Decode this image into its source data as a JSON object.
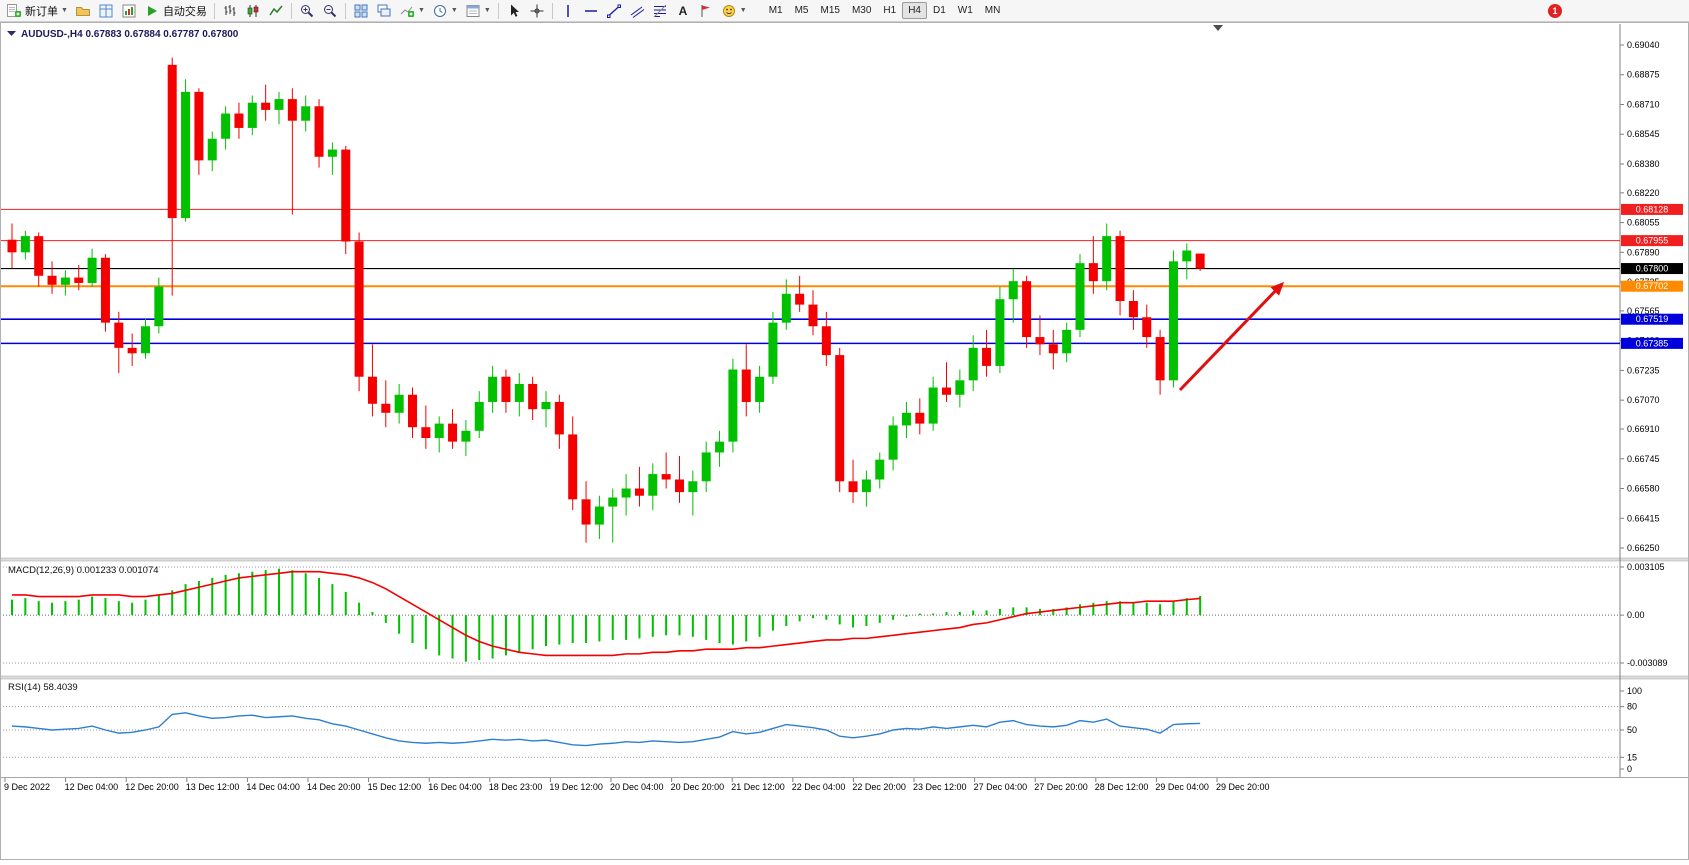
{
  "toolbar": {
    "new_order_label": "新订单",
    "autotrading_label": "自动交易",
    "timeframes": [
      "M1",
      "M5",
      "M15",
      "M30",
      "H1",
      "H4",
      "D1",
      "W1",
      "MN"
    ],
    "active_timeframe": "H4",
    "notification_count": "1",
    "icons": [
      "new-order-icon",
      "profiles-icon",
      "market-watch-icon",
      "terminal-icon",
      "autotrading-icon",
      "bar-chart-icon",
      "candlestick-chart-icon",
      "line-chart-icon",
      "zoom-in-icon",
      "zoom-out-icon",
      "tile-windows-icon",
      "cascade-windows-icon",
      "indicators-icon",
      "periods-icon",
      "templates-icon",
      "cursor-icon",
      "crosshair-icon",
      "vertical-line-icon",
      "horizontal-line-icon",
      "trendline-icon",
      "channel-icon",
      "fibonacci-icon",
      "text-icon",
      "label-icon",
      "arrows-icon"
    ]
  },
  "chart": {
    "title_symbol": "AUDUSD-,H4",
    "title_quotes": "0.67883 0.67884 0.67787 0.67800",
    "arrow_color": "#e01010",
    "price_axis_labels": [
      "0.69040",
      "0.68875",
      "0.68710",
      "0.68545",
      "0.68380",
      "0.68220",
      "0.68055",
      "0.67890",
      "0.67725",
      "0.67565",
      "0.67400",
      "0.67235",
      "0.67070",
      "0.66910",
      "0.66745",
      "0.66580",
      "0.66415",
      "0.66250"
    ],
    "h_lines": [
      {
        "price": 0.68128,
        "label": "0.68128",
        "color": "#f02020",
        "width": 1
      },
      {
        "price": 0.67955,
        "label": "0.67955",
        "color": "#f02020",
        "width": 1
      },
      {
        "price": 0.678,
        "label": "0.67800",
        "color": "#000000",
        "width": 1.2
      },
      {
        "price": 0.67702,
        "label": "0.67702",
        "color": "#ff8a00",
        "width": 2
      },
      {
        "price": 0.67519,
        "label": "0.67519",
        "color": "#0000dd",
        "width": 1.6
      },
      {
        "price": 0.67385,
        "label": "0.67385",
        "color": "#0000dd",
        "width": 1.6
      }
    ],
    "time_axis_labels": [
      "9 Dec 2022",
      "12 Dec 04:00",
      "12 Dec 20:00",
      "13 Dec 12:00",
      "14 Dec 04:00",
      "14 Dec 20:00",
      "15 Dec 12:00",
      "16 Dec 04:00",
      "18 Dec 23:00",
      "19 Dec 12:00",
      "20 Dec 04:00",
      "20 Dec 20:00",
      "21 Dec 12:00",
      "22 Dec 04:00",
      "22 Dec 20:00",
      "23 Dec 12:00",
      "27 Dec 04:00",
      "27 Dec 20:00",
      "28 Dec 12:00",
      "29 Dec 04:00",
      "29 Dec 20:00"
    ]
  },
  "macd": {
    "title": "MACD(12,26,9) 0.001233 0.001074",
    "axis_labels": [
      "0.003105",
      "0.00",
      "-0.003089"
    ]
  },
  "rsi": {
    "title": "RSI(14) 58.4039",
    "axis_labels": [
      "100",
      "80",
      "50",
      "15",
      "0"
    ],
    "levels": [
      80,
      50,
      15
    ]
  },
  "chart_data": [
    {
      "type": "candlestick",
      "title": "AUDUSD-,H4",
      "x_axis": "time, H4 bars, 9 Dec 2022 - 29 Dec 2022",
      "ylim": [
        0.6625,
        0.6904
      ],
      "up_color": "#00c000",
      "down_color": "#f40000",
      "ohlc": [
        [
          0.6796,
          0.6805,
          0.678,
          0.6789
        ],
        [
          0.6789,
          0.6801,
          0.6785,
          0.6798
        ],
        [
          0.6798,
          0.68,
          0.677,
          0.6776
        ],
        [
          0.6776,
          0.6784,
          0.6766,
          0.6771
        ],
        [
          0.6771,
          0.6779,
          0.6765,
          0.6775
        ],
        [
          0.6775,
          0.6782,
          0.6768,
          0.6772
        ],
        [
          0.6772,
          0.6791,
          0.677,
          0.6786
        ],
        [
          0.6786,
          0.6788,
          0.6745,
          0.675
        ],
        [
          0.675,
          0.6756,
          0.6722,
          0.6736
        ],
        [
          0.6736,
          0.6744,
          0.6726,
          0.6733
        ],
        [
          0.6733,
          0.6752,
          0.673,
          0.6748
        ],
        [
          0.6748,
          0.6775,
          0.6744,
          0.677
        ],
        [
          0.6893,
          0.6897,
          0.6765,
          0.6808
        ],
        [
          0.6808,
          0.6885,
          0.6806,
          0.6878
        ],
        [
          0.6878,
          0.688,
          0.6832,
          0.684
        ],
        [
          0.684,
          0.6856,
          0.6834,
          0.6852
        ],
        [
          0.6852,
          0.687,
          0.6846,
          0.6866
        ],
        [
          0.6866,
          0.6872,
          0.6852,
          0.6858
        ],
        [
          0.6858,
          0.6876,
          0.6854,
          0.6872
        ],
        [
          0.6872,
          0.6882,
          0.6862,
          0.6868
        ],
        [
          0.6868,
          0.6878,
          0.686,
          0.6874
        ],
        [
          0.6874,
          0.688,
          0.681,
          0.6862
        ],
        [
          0.6862,
          0.6876,
          0.6856,
          0.687
        ],
        [
          0.687,
          0.6874,
          0.6836,
          0.6842
        ],
        [
          0.6842,
          0.685,
          0.6832,
          0.6846
        ],
        [
          0.6846,
          0.6848,
          0.6788,
          0.6795
        ],
        [
          0.6795,
          0.68,
          0.6712,
          0.672
        ],
        [
          0.672,
          0.6738,
          0.6698,
          0.6705
        ],
        [
          0.6705,
          0.6718,
          0.6692,
          0.67
        ],
        [
          0.67,
          0.6716,
          0.6694,
          0.671
        ],
        [
          0.671,
          0.6714,
          0.6686,
          0.6692
        ],
        [
          0.6692,
          0.6704,
          0.668,
          0.6686
        ],
        [
          0.6686,
          0.6698,
          0.6678,
          0.6694
        ],
        [
          0.6694,
          0.6702,
          0.668,
          0.6684
        ],
        [
          0.6684,
          0.6696,
          0.6676,
          0.669
        ],
        [
          0.669,
          0.6712,
          0.6686,
          0.6706
        ],
        [
          0.6706,
          0.6726,
          0.67,
          0.672
        ],
        [
          0.672,
          0.6724,
          0.67,
          0.6706
        ],
        [
          0.6706,
          0.6722,
          0.6698,
          0.6716
        ],
        [
          0.6716,
          0.672,
          0.6696,
          0.6702
        ],
        [
          0.6702,
          0.6712,
          0.6692,
          0.6706
        ],
        [
          0.6706,
          0.671,
          0.668,
          0.6688
        ],
        [
          0.6688,
          0.6698,
          0.6646,
          0.6652
        ],
        [
          0.6652,
          0.6662,
          0.6628,
          0.6638
        ],
        [
          0.6638,
          0.6654,
          0.663,
          0.6648
        ],
        [
          0.6648,
          0.6658,
          0.6628,
          0.6653
        ],
        [
          0.6653,
          0.6666,
          0.6643,
          0.6658
        ],
        [
          0.6658,
          0.667,
          0.6648,
          0.6654
        ],
        [
          0.6654,
          0.6672,
          0.6646,
          0.6666
        ],
        [
          0.6666,
          0.6678,
          0.6658,
          0.6663
        ],
        [
          0.6663,
          0.6676,
          0.665,
          0.6656
        ],
        [
          0.6656,
          0.6668,
          0.6643,
          0.6662
        ],
        [
          0.6662,
          0.6684,
          0.6656,
          0.6678
        ],
        [
          0.6678,
          0.669,
          0.667,
          0.6684
        ],
        [
          0.6684,
          0.673,
          0.6678,
          0.6724
        ],
        [
          0.6724,
          0.6738,
          0.6698,
          0.6706
        ],
        [
          0.6706,
          0.6726,
          0.67,
          0.672
        ],
        [
          0.672,
          0.6756,
          0.6716,
          0.675
        ],
        [
          0.675,
          0.6774,
          0.6746,
          0.6766
        ],
        [
          0.6766,
          0.6776,
          0.6756,
          0.676
        ],
        [
          0.676,
          0.6768,
          0.6743,
          0.6748
        ],
        [
          0.6748,
          0.6756,
          0.6726,
          0.6732
        ],
        [
          0.6732,
          0.6736,
          0.6656,
          0.6662
        ],
        [
          0.6662,
          0.6674,
          0.665,
          0.6656
        ],
        [
          0.6656,
          0.6668,
          0.6648,
          0.6663
        ],
        [
          0.6663,
          0.6678,
          0.6658,
          0.6674
        ],
        [
          0.6674,
          0.6698,
          0.6668,
          0.6693
        ],
        [
          0.6693,
          0.6706,
          0.6686,
          0.67
        ],
        [
          0.67,
          0.6708,
          0.6688,
          0.6694
        ],
        [
          0.6694,
          0.672,
          0.669,
          0.6714
        ],
        [
          0.6714,
          0.6728,
          0.6706,
          0.671
        ],
        [
          0.671,
          0.6724,
          0.6703,
          0.6718
        ],
        [
          0.6718,
          0.6743,
          0.6712,
          0.6736
        ],
        [
          0.6736,
          0.6746,
          0.672,
          0.6726
        ],
        [
          0.6726,
          0.677,
          0.6722,
          0.6763
        ],
        [
          0.6763,
          0.678,
          0.675,
          0.6773
        ],
        [
          0.6773,
          0.6776,
          0.6736,
          0.6742
        ],
        [
          0.6742,
          0.6754,
          0.6732,
          0.6738
        ],
        [
          0.6738,
          0.6746,
          0.6724,
          0.6733
        ],
        [
          0.6733,
          0.675,
          0.6728,
          0.6746
        ],
        [
          0.6746,
          0.6788,
          0.6742,
          0.6783
        ],
        [
          0.6783,
          0.6798,
          0.6766,
          0.6773
        ],
        [
          0.6773,
          0.6805,
          0.6768,
          0.6798
        ],
        [
          0.6798,
          0.6801,
          0.6754,
          0.6762
        ],
        [
          0.6762,
          0.6768,
          0.6746,
          0.6753
        ],
        [
          0.6753,
          0.676,
          0.6736,
          0.6742
        ],
        [
          0.6742,
          0.6746,
          0.671,
          0.6718
        ],
        [
          0.6718,
          0.679,
          0.6714,
          0.6784
        ],
        [
          0.6784,
          0.6794,
          0.6774,
          0.679
        ],
        [
          0.67883,
          0.67884,
          0.67787,
          0.678
        ]
      ]
    },
    {
      "type": "macd",
      "title": "MACD(12,26,9)",
      "current_values": [
        0.001233,
        0.001074
      ],
      "ylim": [
        -0.003089,
        0.003105
      ],
      "series": [
        {
          "name": "histogram",
          "type": "bar",
          "color": "#00c000",
          "values": [
            0.001,
            0.0011,
            0.0009,
            0.0008,
            0.0009,
            0.001,
            0.0012,
            0.0011,
            0.0009,
            0.0008,
            0.001,
            0.0013,
            0.0016,
            0.002,
            0.0022,
            0.0024,
            0.0026,
            0.0027,
            0.0028,
            0.0029,
            0.003,
            0.0029,
            0.0027,
            0.0024,
            0.002,
            0.0015,
            0.0008,
            0.0002,
            -0.0005,
            -0.0012,
            -0.0018,
            -0.0022,
            -0.0026,
            -0.0028,
            -0.003,
            -0.0029,
            -0.0028,
            -0.0026,
            -0.0024,
            -0.0022,
            -0.002,
            -0.0019,
            -0.0018,
            -0.0018,
            -0.0017,
            -0.0016,
            -0.0016,
            -0.0015,
            -0.0014,
            -0.0013,
            -0.0013,
            -0.0014,
            -0.0016,
            -0.0018,
            -0.0019,
            -0.0017,
            -0.0014,
            -0.001,
            -0.0007,
            -0.0004,
            -0.0002,
            -0.0003,
            -0.0006,
            -0.0008,
            -0.0007,
            -0.0005,
            -0.0003,
            -0.0001,
            0.0001,
            0.0001,
            0.0002,
            0.0002,
            0.0003,
            0.0003,
            0.0004,
            0.0005,
            0.0005,
            0.0004,
            0.0004,
            0.0005,
            0.0007,
            0.0008,
            0.0009,
            0.0009,
            0.0008,
            0.0008,
            0.0007,
            0.0009,
            0.0011,
            0.001233
          ]
        },
        {
          "name": "signal",
          "type": "line",
          "color": "#f40000",
          "values": [
            0.0013,
            0.0013,
            0.0012,
            0.0012,
            0.0012,
            0.0012,
            0.0013,
            0.0013,
            0.0013,
            0.0012,
            0.0012,
            0.0013,
            0.0014,
            0.0016,
            0.0018,
            0.002,
            0.0022,
            0.0024,
            0.0025,
            0.0026,
            0.0027,
            0.0028,
            0.0028,
            0.0028,
            0.0027,
            0.0026,
            0.0024,
            0.0021,
            0.0017,
            0.0012,
            0.0007,
            0.0002,
            -0.0003,
            -0.0008,
            -0.0013,
            -0.0017,
            -0.002,
            -0.0022,
            -0.0024,
            -0.0025,
            -0.0026,
            -0.0026,
            -0.0026,
            -0.0026,
            -0.0026,
            -0.0026,
            -0.0025,
            -0.0025,
            -0.0024,
            -0.0024,
            -0.0023,
            -0.0023,
            -0.0022,
            -0.0022,
            -0.0022,
            -0.0021,
            -0.0021,
            -0.002,
            -0.0019,
            -0.0018,
            -0.0017,
            -0.0016,
            -0.0016,
            -0.0015,
            -0.0015,
            -0.0014,
            -0.0013,
            -0.0012,
            -0.0011,
            -0.001,
            -0.0009,
            -0.0008,
            -0.0006,
            -0.0005,
            -0.0003,
            -0.0001,
            0.0001,
            0.0002,
            0.0003,
            0.0004,
            0.0005,
            0.0006,
            0.0007,
            0.0008,
            0.0008,
            0.0009,
            0.0009,
            0.0009,
            0.001,
            0.001074
          ]
        }
      ]
    },
    {
      "type": "line",
      "title": "RSI(14)",
      "current_value": 58.4039,
      "ylim": [
        0,
        100
      ],
      "levels": [
        80,
        50,
        15
      ],
      "series": [
        {
          "name": "rsi",
          "color": "#2e7fd0",
          "values": [
            55,
            54,
            52,
            50,
            51,
            52,
            55,
            50,
            46,
            47,
            50,
            54,
            70,
            72,
            68,
            65,
            66,
            68,
            69,
            66,
            67,
            68,
            65,
            63,
            58,
            55,
            50,
            45,
            40,
            36,
            34,
            33,
            34,
            33,
            34,
            36,
            38,
            37,
            38,
            36,
            37,
            34,
            31,
            30,
            32,
            33,
            35,
            34,
            36,
            35,
            34,
            35,
            38,
            41,
            48,
            45,
            47,
            52,
            57,
            55,
            53,
            50,
            42,
            40,
            42,
            45,
            50,
            52,
            51,
            54,
            52,
            54,
            56,
            54,
            60,
            62,
            57,
            55,
            54,
            56,
            62,
            60,
            64,
            55,
            53,
            51,
            46,
            57,
            58,
            58.4
          ]
        }
      ]
    }
  ]
}
